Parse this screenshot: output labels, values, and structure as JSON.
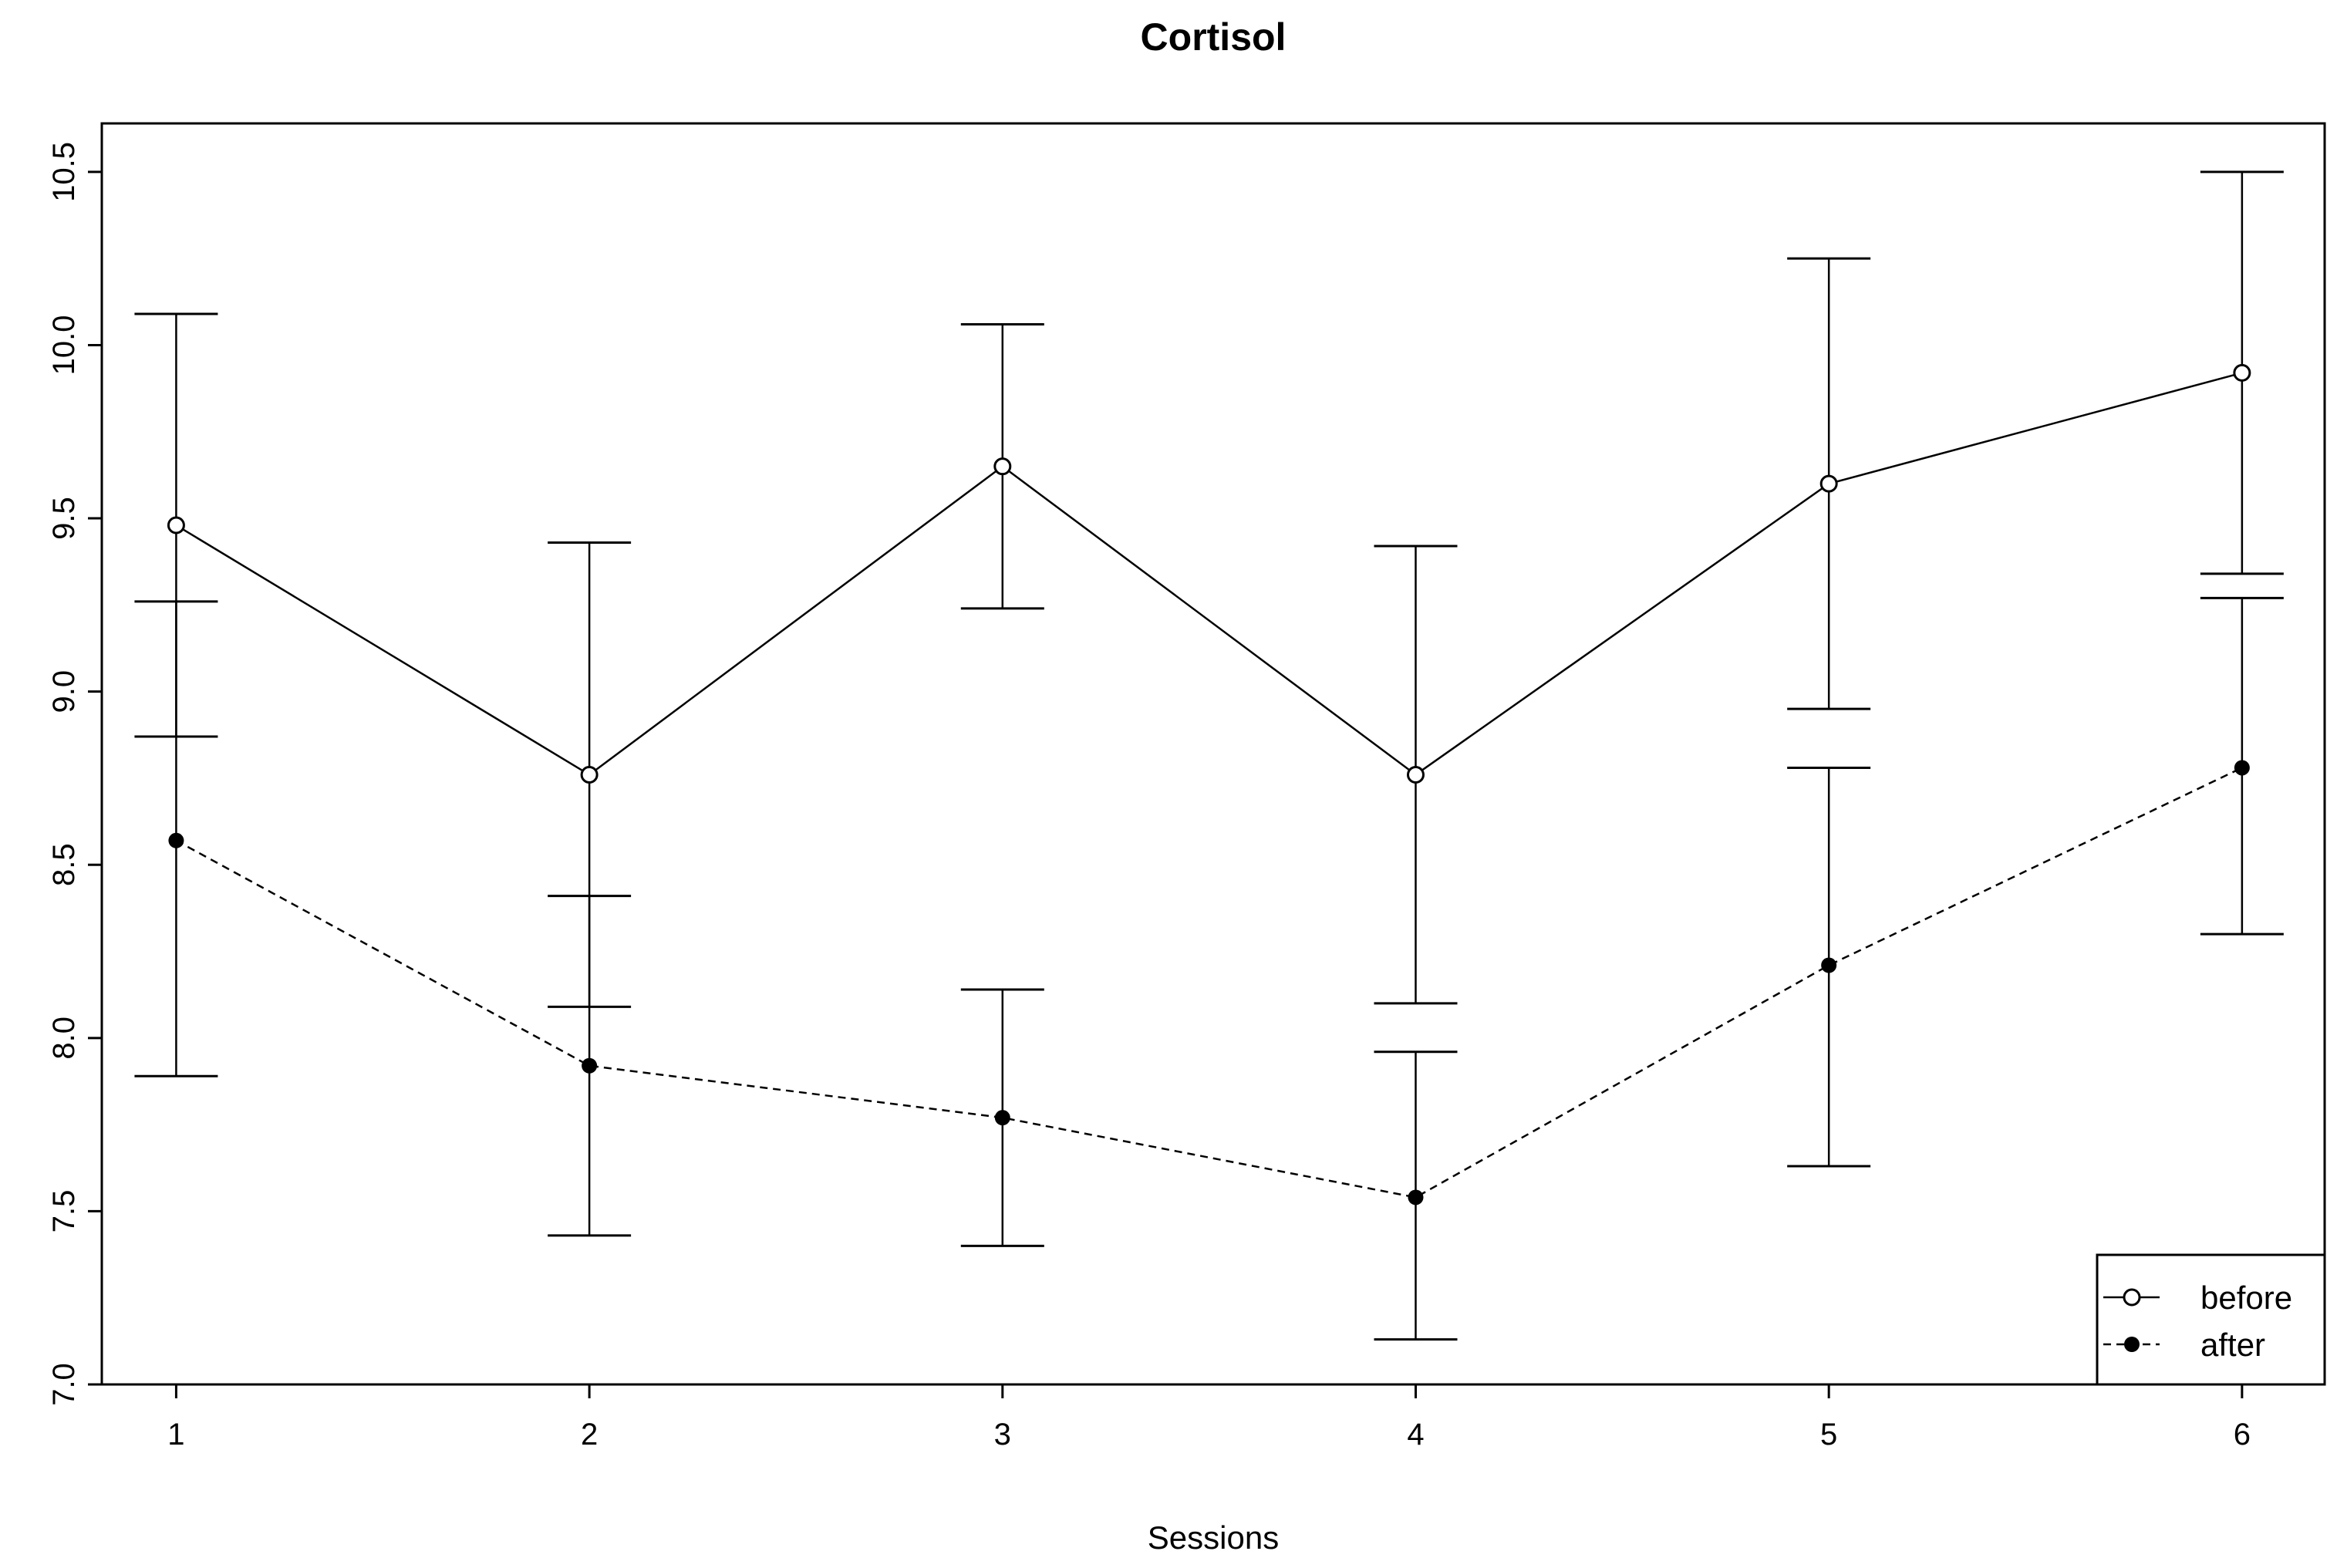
{
  "chart_data": {
    "type": "line",
    "title": "Cortisol",
    "xlabel": "Sessions",
    "ylabel": "",
    "x": [
      1,
      2,
      3,
      4,
      5,
      6
    ],
    "xlim": [
      0.82,
      6.2
    ],
    "ylim": [
      7.0,
      10.64
    ],
    "xticks": [
      "1",
      "2",
      "3",
      "4",
      "5",
      "6"
    ],
    "yticks": [
      "7.0",
      "7.5",
      "8.0",
      "8.5",
      "9.0",
      "9.5",
      "10.0",
      "10.5"
    ],
    "grid": false,
    "legend_position": "bottom-right",
    "series": [
      {
        "name": "before",
        "marker": "open-circle",
        "line_style": "solid",
        "values": [
          9.48,
          8.76,
          9.65,
          8.76,
          9.6,
          9.92
        ],
        "err_low": [
          8.87,
          8.09,
          9.24,
          8.1,
          8.95,
          9.34
        ],
        "err_high": [
          10.09,
          9.43,
          10.06,
          9.42,
          10.25,
          10.5
        ]
      },
      {
        "name": "after",
        "marker": "filled-circle",
        "line_style": "dashed",
        "values": [
          8.57,
          7.92,
          7.77,
          7.54,
          8.21,
          8.78
        ],
        "err_low": [
          7.89,
          7.43,
          7.4,
          7.13,
          7.63,
          8.3
        ],
        "err_high": [
          9.26,
          8.41,
          8.14,
          7.96,
          8.78,
          9.27
        ]
      }
    ]
  }
}
